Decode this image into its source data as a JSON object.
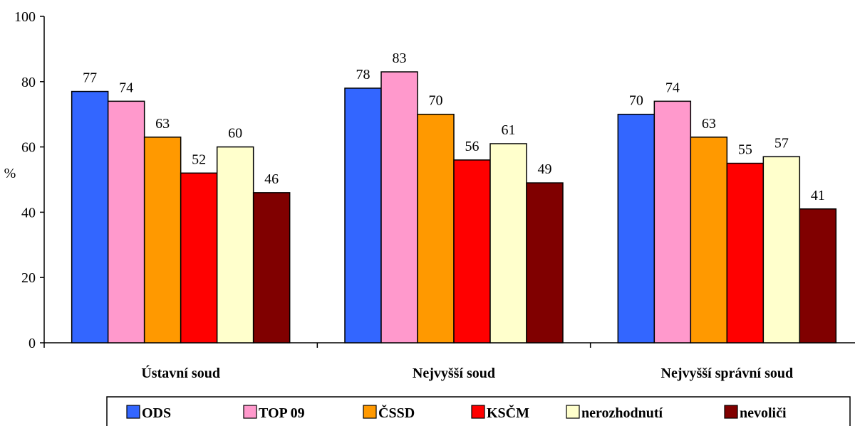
{
  "chart_data": {
    "type": "bar",
    "ylabel": "%",
    "ylim": [
      0,
      100
    ],
    "yticks": [
      0,
      20,
      40,
      60,
      80,
      100
    ],
    "grid": false,
    "legend_position": "bottom",
    "categories": [
      "Ústavní soud",
      "Nejvyšší soud",
      "Nejvyšší správní soud"
    ],
    "series": [
      {
        "name": "ODS",
        "color": "#3366ff",
        "values": [
          77,
          78,
          70
        ]
      },
      {
        "name": "TOP 09",
        "color": "#ff99cc",
        "values": [
          74,
          83,
          74
        ]
      },
      {
        "name": "ČSSD",
        "color": "#ff9900",
        "values": [
          63,
          70,
          63
        ]
      },
      {
        "name": "KSČM",
        "color": "#ff0000",
        "values": [
          52,
          56,
          55
        ]
      },
      {
        "name": "nerozhodnutí",
        "color": "#ffffcc",
        "values": [
          60,
          61,
          57
        ]
      },
      {
        "name": "nevoliči",
        "color": "#800000",
        "values": [
          46,
          49,
          41
        ]
      }
    ]
  }
}
